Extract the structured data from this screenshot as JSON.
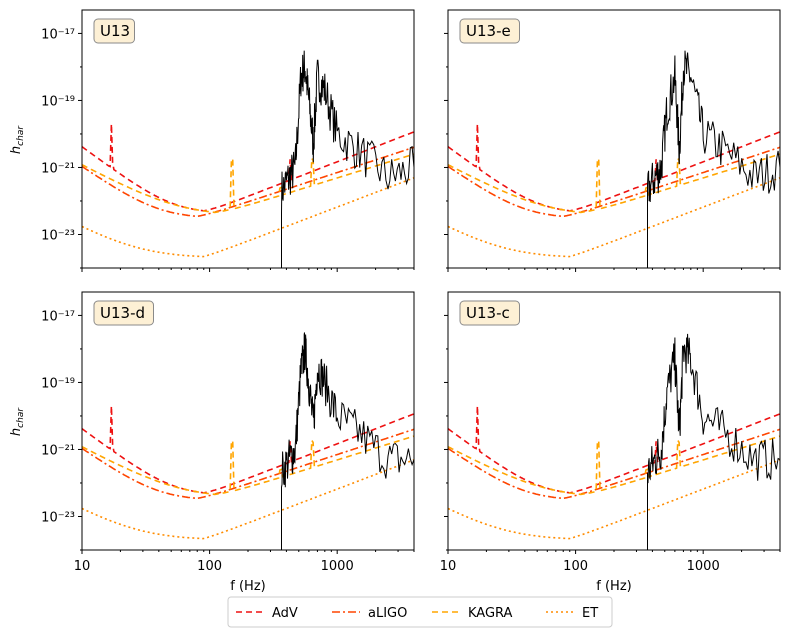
{
  "colors": {
    "AdV": "#ee1111",
    "aLIGO": "#ff4500",
    "KAGRA": "#ffa500",
    "ET": "#ff8c00",
    "signal": "#000000",
    "label_box": "#fdf0d5"
  },
  "chart_data": [
    {
      "type": "line",
      "panel": "U13",
      "xscale": "log",
      "yscale": "log",
      "xlim": [
        10,
        4000
      ],
      "ylim": [
        1e-24,
        5e-17
      ],
      "xlabel": "",
      "ylabel": "h_char",
      "xticks": [
        "10",
        "100",
        "1000"
      ],
      "yticks": [
        "10⁻¹⁷",
        "10⁻¹⁹",
        "10⁻²¹",
        "10⁻²³"
      ],
      "signal_approx": [
        [
          366,
          1e-24
        ],
        [
          366,
          2e-22
        ],
        [
          420,
          5e-22
        ],
        [
          470,
          1e-21
        ],
        [
          520,
          5e-19
        ],
        [
          560,
          1e-18
        ],
        [
          600,
          1e-19
        ],
        [
          650,
          5e-21
        ],
        [
          700,
          5e-19
        ],
        [
          800,
          2e-19
        ],
        [
          1000,
          1e-20
        ],
        [
          1500,
          3e-21
        ],
        [
          2500,
          5e-22
        ],
        [
          4000,
          1e-21
        ]
      ]
    },
    {
      "type": "line",
      "panel": "U13-e",
      "xscale": "log",
      "yscale": "log",
      "xlim": [
        10,
        4000
      ],
      "ylim": [
        1e-24,
        5e-17
      ],
      "xlabel": "",
      "ylabel": "",
      "xticks": [
        "10",
        "100",
        "1000"
      ],
      "yticks": [
        "10⁻¹⁷",
        "10⁻¹⁹",
        "10⁻²¹",
        "10⁻²³"
      ],
      "signal_approx": [
        [
          366,
          1e-24
        ],
        [
          366,
          2e-22
        ],
        [
          420,
          5e-22
        ],
        [
          470,
          1e-21
        ],
        [
          520,
          5e-20
        ],
        [
          600,
          5e-19
        ],
        [
          650,
          3e-21
        ],
        [
          700,
          1e-18
        ],
        [
          800,
          5e-19
        ],
        [
          1000,
          1e-20
        ],
        [
          1500,
          3e-21
        ],
        [
          2500,
          5e-22
        ],
        [
          4000,
          1e-21
        ]
      ]
    },
    {
      "type": "line",
      "panel": "U13-d",
      "xscale": "log",
      "yscale": "log",
      "xlim": [
        10,
        4000
      ],
      "ylim": [
        1e-24,
        5e-17
      ],
      "xlabel": "f (Hz)",
      "ylabel": "h_char",
      "xticks": [
        "10",
        "100",
        "1000"
      ],
      "yticks": [
        "10⁻¹⁷",
        "10⁻¹⁹",
        "10⁻²¹",
        "10⁻²³"
      ],
      "signal_approx": [
        [
          366,
          1e-24
        ],
        [
          366,
          2e-22
        ],
        [
          420,
          5e-22
        ],
        [
          470,
          1e-21
        ],
        [
          520,
          2e-19
        ],
        [
          560,
          1e-18
        ],
        [
          600,
          1e-19
        ],
        [
          650,
          5e-21
        ],
        [
          700,
          3e-19
        ],
        [
          800,
          1e-19
        ],
        [
          1000,
          1e-20
        ],
        [
          1500,
          3e-21
        ],
        [
          2500,
          5e-22
        ],
        [
          4000,
          5e-22
        ]
      ]
    },
    {
      "type": "line",
      "panel": "U13-c",
      "xscale": "log",
      "yscale": "log",
      "xlim": [
        10,
        4000
      ],
      "ylim": [
        1e-24,
        5e-17
      ],
      "xlabel": "f (Hz)",
      "ylabel": "",
      "xticks": [
        "10",
        "100",
        "1000"
      ],
      "yticks": [
        "10⁻¹⁷",
        "10⁻¹⁹",
        "10⁻²¹",
        "10⁻²³"
      ],
      "signal_approx": [
        [
          366,
          1e-24
        ],
        [
          366,
          2e-22
        ],
        [
          420,
          5e-22
        ],
        [
          470,
          1e-21
        ],
        [
          520,
          5e-20
        ],
        [
          600,
          5e-19
        ],
        [
          650,
          3e-21
        ],
        [
          700,
          1e-18
        ],
        [
          800,
          5e-19
        ],
        [
          1000,
          1e-20
        ],
        [
          1500,
          3e-21
        ],
        [
          2500,
          5e-22
        ],
        [
          4000,
          5e-22
        ]
      ]
    }
  ],
  "legend": [
    {
      "label": "AdV",
      "series": "AdV",
      "dash": "dashed"
    },
    {
      "label": "aLIGO",
      "series": "aLIGO",
      "dash": "dashdot"
    },
    {
      "label": "KAGRA",
      "series": "KAGRA",
      "dash": "dashed"
    },
    {
      "label": "ET",
      "series": "ET",
      "dash": "dotted"
    }
  ],
  "labels": {
    "xaxis": "f (Hz)",
    "yaxis_main": "h",
    "yaxis_sub": "char"
  }
}
